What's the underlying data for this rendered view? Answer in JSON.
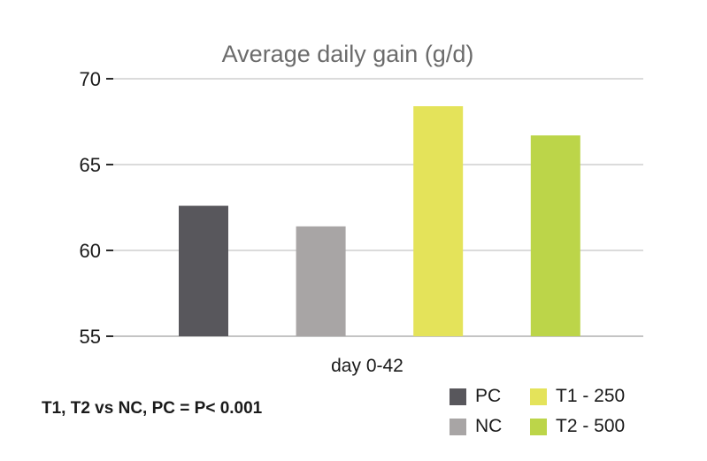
{
  "chart_data": {
    "type": "bar",
    "title": "Average daily gain (g/d)",
    "xlabel": "day 0-42",
    "ylabel": "",
    "ylim": [
      55,
      70
    ],
    "yticks": [
      55,
      60,
      65,
      70
    ],
    "categories": [
      "day 0-42"
    ],
    "series": [
      {
        "name": "PC",
        "values": [
          62.6
        ],
        "color": "#58575c"
      },
      {
        "name": "NC",
        "values": [
          61.4
        ],
        "color": "#a8a5a5"
      },
      {
        "name": "T1 - 250",
        "values": [
          68.4
        ],
        "color": "#e4e35a"
      },
      {
        "name": "T2 - 500",
        "values": [
          66.7
        ],
        "color": "#bcd549"
      }
    ],
    "grid": true,
    "legend": "bottom-right",
    "annotation": "T1, T2 vs NC, PC = P< 0.001"
  }
}
